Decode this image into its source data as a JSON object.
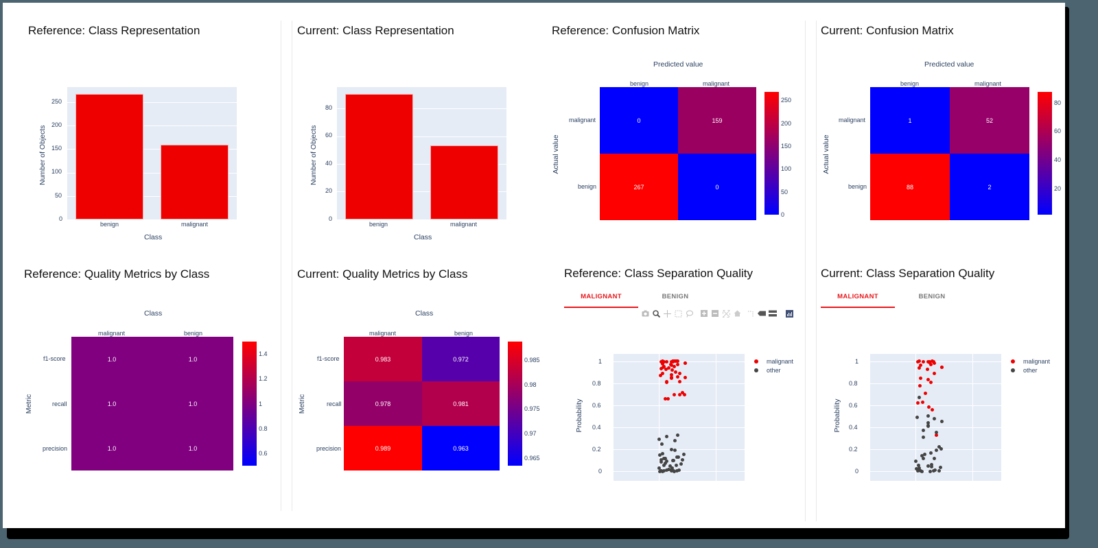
{
  "colors": {
    "bar": "#ee0000",
    "plot_bg": "#e5ecf6",
    "axis_text": "#2a3f5f",
    "heat_low": "#0000ff",
    "heat_high": "#ff0000",
    "tab_active": "#e8161b",
    "tab_inactive": "#777777",
    "scatter_malignant": "#ee0000",
    "scatter_other": "#444444"
  },
  "panels": {
    "ref_class_rep": {
      "title": "Reference: Class Representation",
      "xlabel": "Class",
      "ylabel": "Number of Objects",
      "yticks": [
        "0",
        "50",
        "100",
        "150",
        "200",
        "250"
      ],
      "categories": [
        "benign",
        "malignant"
      ]
    },
    "cur_class_rep": {
      "title": "Current: Class Representation",
      "xlabel": "Class",
      "ylabel": "Number of Objects",
      "yticks": [
        "0",
        "20",
        "40",
        "60",
        "80"
      ],
      "categories": [
        "benign",
        "malignant"
      ]
    },
    "ref_confusion": {
      "title": "Reference: Confusion Matrix",
      "xlabel": "Predicted value",
      "ylabel": "Actual value",
      "xcats": [
        "benign",
        "malignant"
      ],
      "ycats": [
        "malignant",
        "benign"
      ],
      "cells": [
        "0",
        "159",
        "267",
        "0"
      ],
      "cbar_ticks": [
        "250",
        "200",
        "150",
        "100",
        "50",
        "0"
      ]
    },
    "cur_confusion": {
      "title": "Current: Confusion Matrix",
      "xlabel": "Predicted value",
      "ylabel": "Actual value",
      "xcats": [
        "benign",
        "malignant"
      ],
      "ycats": [
        "malignant",
        "benign"
      ],
      "cells": [
        "1",
        "52",
        "88",
        "2"
      ],
      "cbar_ticks": [
        "80",
        "60",
        "40",
        "20"
      ]
    },
    "ref_quality": {
      "title": "Reference: Quality Metrics by Class",
      "xlabel": "Class",
      "ylabel": "Metric",
      "xcats": [
        "malignant",
        "benign"
      ],
      "ycats": [
        "f1-score",
        "recall",
        "precision"
      ],
      "cells": [
        "1.0",
        "1.0",
        "1.0",
        "1.0",
        "1.0",
        "1.0"
      ],
      "cbar_ticks": [
        "1.4",
        "1.2",
        "1",
        "0.8",
        "0.6"
      ]
    },
    "cur_quality": {
      "title": "Current: Quality Metrics by Class",
      "xlabel": "Class",
      "ylabel": "Metric",
      "xcats": [
        "malignant",
        "benign"
      ],
      "ycats": [
        "f1-score",
        "recall",
        "precision"
      ],
      "cells": [
        "0.983",
        "0.972",
        "0.978",
        "0.981",
        "0.989",
        "0.963"
      ],
      "cbar_ticks": [
        "0.985",
        "0.98",
        "0.975",
        "0.97",
        "0.965"
      ]
    },
    "ref_separation": {
      "title": "Reference: Class Separation Quality",
      "tabs": [
        "MALIGNANT",
        "BENIGN"
      ],
      "active_tab": "MALIGNANT",
      "ylabel": "Probability",
      "yticks": [
        "0",
        "0.2",
        "0.4",
        "0.6",
        "0.8",
        "1"
      ],
      "legend": [
        "malignant",
        "other"
      ]
    },
    "cur_separation": {
      "title": "Current: Class Separation Quality",
      "tabs": [
        "MALIGNANT",
        "BENIGN"
      ],
      "active_tab": "MALIGNANT",
      "ylabel": "Probability",
      "yticks": [
        "0",
        "0.2",
        "0.4",
        "0.6",
        "0.8",
        "1"
      ],
      "legend": [
        "malignant",
        "other"
      ]
    }
  },
  "modebar": [
    "camera-icon",
    "zoom-icon",
    "pan-icon",
    "box-select-icon",
    "lasso-icon",
    "zoom-in-icon",
    "zoom-out-icon",
    "autoscale-icon",
    "reset-axes-icon",
    "spike-lines-icon",
    "hover-closest-icon",
    "hover-compare-icon",
    "plotly-logo-icon"
  ],
  "chart_data": [
    {
      "type": "bar",
      "title": "Reference: Class Representation",
      "categories": [
        "benign",
        "malignant"
      ],
      "values": [
        267,
        159
      ],
      "xlabel": "Class",
      "ylabel": "Number of Objects",
      "ylim": [
        0,
        280
      ],
      "grid": true
    },
    {
      "type": "bar",
      "title": "Current: Class Representation",
      "categories": [
        "benign",
        "malignant"
      ],
      "values": [
        90,
        53
      ],
      "xlabel": "Class",
      "ylabel": "Number of Objects",
      "ylim": [
        0,
        95
      ],
      "grid": true
    },
    {
      "type": "heatmap",
      "title": "Reference: Confusion Matrix",
      "x": [
        "benign",
        "malignant"
      ],
      "y": [
        "malignant",
        "benign"
      ],
      "z": [
        [
          0,
          159
        ],
        [
          267,
          0
        ]
      ],
      "xlabel": "Predicted value",
      "ylabel": "Actual value",
      "colorscale": [
        "#0000ff",
        "#ff0000"
      ],
      "zrange": [
        0,
        267
      ]
    },
    {
      "type": "heatmap",
      "title": "Current: Confusion Matrix",
      "x": [
        "benign",
        "malignant"
      ],
      "y": [
        "malignant",
        "benign"
      ],
      "z": [
        [
          1,
          52
        ],
        [
          88,
          2
        ]
      ],
      "xlabel": "Predicted value",
      "ylabel": "Actual value",
      "colorscale": [
        "#0000ff",
        "#ff0000"
      ],
      "zrange": [
        1,
        88
      ]
    },
    {
      "type": "heatmap",
      "title": "Reference: Quality Metrics by Class",
      "x": [
        "malignant",
        "benign"
      ],
      "y": [
        "f1-score",
        "recall",
        "precision"
      ],
      "z": [
        [
          1.0,
          1.0
        ],
        [
          1.0,
          1.0
        ],
        [
          1.0,
          1.0
        ]
      ],
      "xlabel": "Class",
      "ylabel": "Metric",
      "colorscale": [
        "#0000ff",
        "#ff0000"
      ],
      "zrange": [
        0.5,
        1.5
      ]
    },
    {
      "type": "heatmap",
      "title": "Current: Quality Metrics by Class",
      "x": [
        "malignant",
        "benign"
      ],
      "y": [
        "f1-score",
        "recall",
        "precision"
      ],
      "z": [
        [
          0.983,
          0.972
        ],
        [
          0.978,
          0.981
        ],
        [
          0.989,
          0.963
        ]
      ],
      "xlabel": "Class",
      "ylabel": "Metric",
      "colorscale": [
        "#0000ff",
        "#ff0000"
      ],
      "zrange": [
        0.963,
        0.989
      ]
    },
    {
      "type": "scatter",
      "title": "Reference: Class Separation Quality",
      "ylabel": "Probability",
      "ylim": [
        -0.02,
        1.05
      ],
      "series": [
        {
          "name": "malignant",
          "color": "#ee0000",
          "y": [
            1,
            1,
            1,
            1,
            1,
            1,
            1,
            1,
            1,
            1,
            0.99,
            0.99,
            0.98,
            0.98,
            0.97,
            0.97,
            0.96,
            0.96,
            0.95,
            0.95,
            0.94,
            0.94,
            0.93,
            0.92,
            0.9,
            0.89,
            0.89,
            0.87,
            0.87,
            0.86,
            0.85,
            0.85,
            0.85,
            0.85,
            0.81,
            0.81,
            0.81,
            0.72,
            0.7,
            0.7,
            0.69,
            0.66,
            0.66
          ]
        },
        {
          "name": "other",
          "color": "#444444",
          "y": [
            0.33,
            0.32,
            0.29,
            0.28,
            0.25,
            0.2,
            0.19,
            0.16,
            0.15,
            0.14,
            0.13,
            0.13,
            0.12,
            0.11,
            0.1,
            0.1,
            0.1,
            0.09,
            0.09,
            0.08,
            0.07,
            0.06,
            0.05,
            0.05,
            0.04,
            0.03,
            0.03,
            0.02,
            0.02,
            0.01,
            0.01,
            0.01,
            0,
            0,
            0,
            0,
            0,
            0,
            0,
            0
          ]
        }
      ],
      "legend_position": "right"
    },
    {
      "type": "scatter",
      "title": "Current: Class Separation Quality",
      "ylabel": "Probability",
      "ylim": [
        -0.02,
        1.05
      ],
      "series": [
        {
          "name": "malignant",
          "color": "#ee0000",
          "y": [
            1,
            1,
            1,
            1,
            1,
            1,
            0.99,
            0.99,
            0.98,
            0.97,
            0.96,
            0.95,
            0.94,
            0.94,
            0.93,
            0.89,
            0.85,
            0.83,
            0.81,
            0.78,
            0.71,
            0.63,
            0.63,
            0.58,
            0.56,
            0.33
          ]
        },
        {
          "name": "other",
          "color": "#444444",
          "y": [
            0.67,
            0.5,
            0.49,
            0.48,
            0.45,
            0.44,
            0.42,
            0.41,
            0.37,
            0.35,
            0.31,
            0.23,
            0.21,
            0.19,
            0.16,
            0.15,
            0.14,
            0.12,
            0.12,
            0.09,
            0.06,
            0.06,
            0.05,
            0.04,
            0.03,
            0.03,
            0.02,
            0.01,
            0.01,
            0,
            0,
            0,
            0,
            0
          ]
        }
      ],
      "legend_position": "right"
    }
  ]
}
